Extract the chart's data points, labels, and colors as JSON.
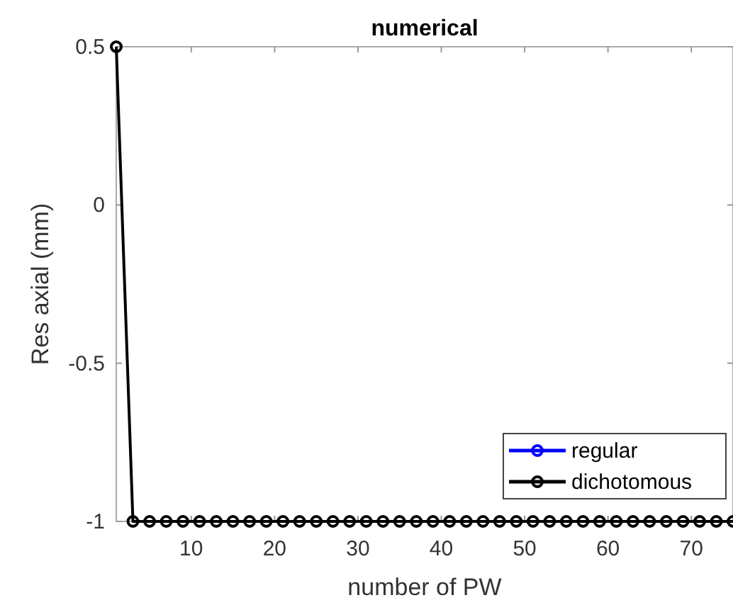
{
  "chart_data": {
    "type": "line",
    "title": "numerical",
    "xlabel": "number of PW",
    "ylabel": "Res axial (mm)",
    "x": [
      1,
      3,
      5,
      7,
      9,
      11,
      13,
      15,
      17,
      19,
      21,
      23,
      25,
      27,
      29,
      31,
      33,
      35,
      37,
      39,
      41,
      43,
      45,
      47,
      49,
      51,
      53,
      55,
      57,
      59,
      61,
      63,
      65,
      67,
      69,
      71,
      73,
      75
    ],
    "series": [
      {
        "name": "regular",
        "color": "#0000ff",
        "values": [
          null,
          null,
          null,
          null,
          null,
          null,
          null,
          null,
          null,
          null,
          null,
          null,
          null,
          null,
          null,
          null,
          null,
          null,
          null,
          null,
          null,
          null,
          null,
          null,
          null,
          null,
          null,
          null,
          null,
          null,
          null,
          null,
          null,
          null,
          null,
          null,
          null,
          null
        ]
      },
      {
        "name": "dichotomous",
        "color": "#000000",
        "values": [
          0.5,
          -1,
          -1,
          -1,
          -1,
          -1,
          -1,
          -1,
          -1,
          -1,
          -1,
          -1,
          -1,
          -1,
          -1,
          -1,
          -1,
          -1,
          -1,
          -1,
          -1,
          -1,
          -1,
          -1,
          -1,
          -1,
          -1,
          -1,
          -1,
          -1,
          -1,
          -1,
          -1,
          -1,
          -1,
          -1,
          -1,
          -1
        ]
      }
    ],
    "xlim": [
      1,
      75
    ],
    "xticks": [
      10,
      20,
      30,
      40,
      50,
      60,
      70
    ],
    "ylim": [
      -1,
      0.5
    ],
    "yticks": [
      -1,
      -0.5,
      0,
      0.5
    ],
    "grid": false,
    "legend": "bottom right",
    "marker": "circle",
    "line_style": "solid"
  }
}
